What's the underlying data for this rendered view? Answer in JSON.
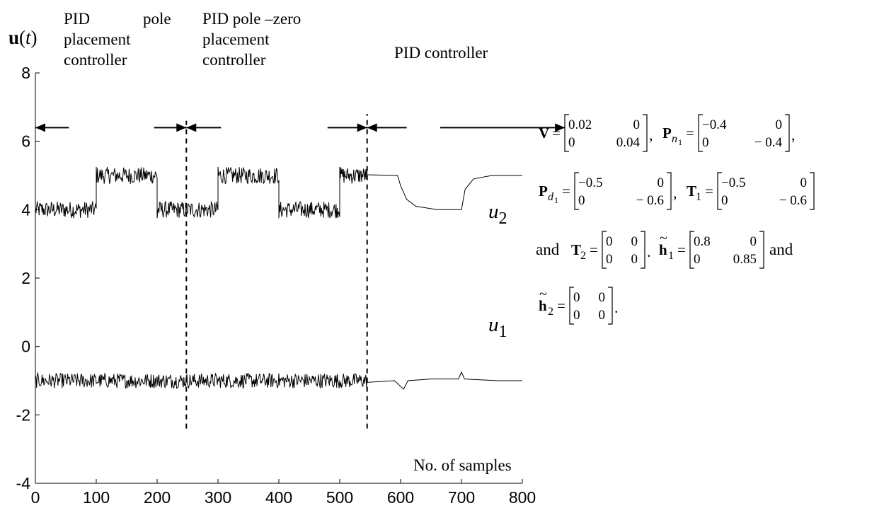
{
  "chart_data": {
    "type": "line",
    "ylabel": "u(t)",
    "xlabel": "No. of samples",
    "xlim": [
      0,
      800
    ],
    "ylim": [
      -4,
      8
    ],
    "xticks": [
      0,
      100,
      200,
      300,
      400,
      500,
      600,
      700,
      800
    ],
    "yticks": [
      -4,
      -2,
      0,
      2,
      4,
      6,
      8
    ],
    "grid": false,
    "series": [
      {
        "name": "u2",
        "noise_amplitude": 0.45,
        "segments": [
          {
            "x_start": 0,
            "x_end": 100,
            "mean": 4.0
          },
          {
            "x_start": 100,
            "x_end": 200,
            "mean": 5.0
          },
          {
            "x_start": 200,
            "x_end": 300,
            "mean": 4.0
          },
          {
            "x_start": 300,
            "x_end": 400,
            "mean": 5.0
          },
          {
            "x_start": 400,
            "x_end": 500,
            "mean": 4.0
          },
          {
            "x_start": 500,
            "x_end": 545,
            "mean": 5.0
          }
        ],
        "smooth_points": [
          [
            545,
            5.02
          ],
          [
            595,
            5.0
          ],
          [
            600,
            4.7
          ],
          [
            610,
            4.3
          ],
          [
            625,
            4.1
          ],
          [
            660,
            4.0
          ],
          [
            700,
            4.0
          ],
          [
            706,
            4.6
          ],
          [
            720,
            4.9
          ],
          [
            750,
            5.0
          ],
          [
            800,
            5.0
          ]
        ]
      },
      {
        "name": "u1",
        "noise_amplitude": 0.4,
        "segments": [
          {
            "x_start": 0,
            "x_end": 545,
            "mean": -1.0
          }
        ],
        "smooth_points": [
          [
            545,
            -1.05
          ],
          [
            590,
            -1.0
          ],
          [
            605,
            -1.25
          ],
          [
            612,
            -1.0
          ],
          [
            650,
            -0.95
          ],
          [
            695,
            -0.95
          ],
          [
            700,
            -0.75
          ],
          [
            705,
            -0.95
          ],
          [
            760,
            -1.0
          ],
          [
            800,
            -1.0
          ]
        ]
      }
    ],
    "vertical_lines": [
      {
        "x": 248,
        "y_from": -2.4,
        "y_to": 6.6
      },
      {
        "x": 545,
        "y_from": -2.4,
        "y_to": 6.8
      }
    ],
    "arrows": [
      {
        "x_from": 55,
        "x_to": 0,
        "y": 6.4
      },
      {
        "x_from": 195,
        "x_to": 248,
        "y": 6.4
      },
      {
        "x_from": 305,
        "x_to": 248,
        "y": 6.4
      },
      {
        "x_from": 480,
        "x_to": 545,
        "y": 6.4
      },
      {
        "x_from": 610,
        "x_to": 545,
        "y": 6.4
      },
      {
        "x_from": 665,
        "x_to": 870,
        "y": 6.4
      }
    ],
    "annotations": {
      "region1_line1": "PID",
      "region1_line1b": "pole",
      "region1_line2": "placement",
      "region1_line3": "controller",
      "region2_line1": "PID pole –zero",
      "region2_line2": "placement",
      "region2_line3": "controller",
      "region3": "PID controller",
      "u2_label": "u",
      "u2_sub": "2",
      "u1_label": "u",
      "u1_sub": "1"
    }
  },
  "params": {
    "V": {
      "name": "V",
      "rows": [
        [
          "0.02",
          "0"
        ],
        [
          "0",
          "0.04"
        ]
      ],
      "tail": ","
    },
    "Pn1": {
      "name": "P",
      "sub": "n",
      "subsub": "1",
      "rows": [
        [
          "−0.4",
          "0"
        ],
        [
          "0",
          "− 0.4"
        ]
      ],
      "tail": ","
    },
    "Pd1": {
      "name": "P",
      "sub": "d",
      "subsub": "1",
      "rows": [
        [
          "−0.5",
          "0"
        ],
        [
          "0",
          "− 0.6"
        ]
      ],
      "tail": ","
    },
    "T1": {
      "name": "T",
      "sub": "1",
      "rows": [
        [
          "−0.5",
          "0"
        ],
        [
          "0",
          "− 0.6"
        ]
      ],
      "tail": ""
    },
    "T2": {
      "name": "T",
      "sub": "2",
      "rows": [
        [
          "0",
          "0"
        ],
        [
          "0",
          "0"
        ]
      ],
      "tail": "."
    },
    "h1": {
      "name": "h",
      "tilde": "~",
      "sub": "1",
      "rows": [
        [
          "0.8",
          "0"
        ],
        [
          "0",
          "0.85"
        ]
      ],
      "tail": ""
    },
    "h2": {
      "name": "h",
      "tilde": "~",
      "sub": "2",
      "rows": [
        [
          "0",
          "0"
        ],
        [
          "0",
          "0"
        ]
      ],
      "tail": "."
    },
    "and1": "and",
    "and2": "and",
    "eq": "="
  }
}
